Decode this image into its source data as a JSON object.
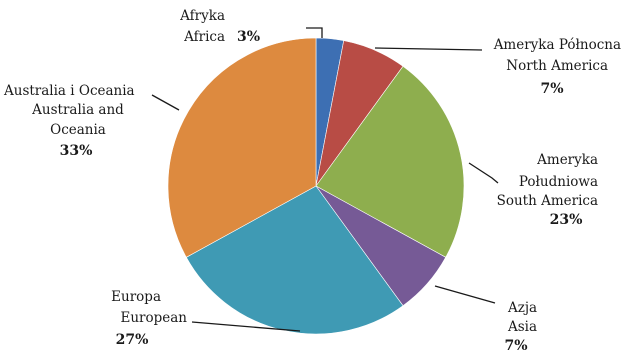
{
  "chart_data": {
    "type": "pie",
    "title": "",
    "slices": [
      {
        "label_pl": "Afryka",
        "label_en": "Africa",
        "value": 3,
        "percent_label": "3%",
        "color": "#3d6fb3"
      },
      {
        "label_pl": "Ameryka Północna",
        "label_en": "North America",
        "value": 7,
        "percent_label": "7%",
        "color": "#b84c45"
      },
      {
        "label_pl": "Ameryka Południowa",
        "label_en": "South America",
        "value": 23,
        "percent_label": "23%",
        "color": "#8eae4e"
      },
      {
        "label_pl": "Azja",
        "label_en": "Asia",
        "value": 7,
        "percent_label": "7%",
        "color": "#765a96"
      },
      {
        "label_pl": "Europa",
        "label_en": "European",
        "value": 27,
        "percent_label": "27%",
        "color": "#3f9ab4"
      },
      {
        "label_pl": "Australia i Oceania",
        "label_en": "Australia and Oceania",
        "value": 33,
        "percent_label": "33%",
        "color": "#dd8a3f"
      }
    ]
  }
}
